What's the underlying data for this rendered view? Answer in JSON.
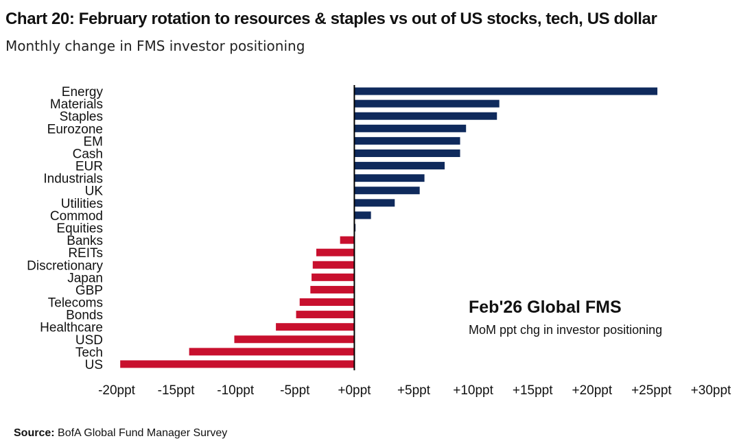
{
  "header": {
    "title": "Chart 20: February rotation to resources & staples vs out of US stocks, tech, US dollar",
    "subtitle": "Monthly change in FMS investor positioning"
  },
  "footer": {
    "source_label": "Source:",
    "source_text": "BofA Global Fund Manager Survey"
  },
  "chart_data": {
    "type": "bar",
    "orientation": "horizontal",
    "categories": [
      "Energy",
      "Materials",
      "Staples",
      "Eurozone",
      "EM",
      "Cash",
      "EUR",
      "Industrials",
      "UK",
      "Utilities",
      "Commod",
      "Equities",
      "Banks",
      "REITs",
      "Discretionary",
      "Japan",
      "GBP",
      "Telecoms",
      "Bonds",
      "Healthcare",
      "USD",
      "Tech",
      "US"
    ],
    "values": [
      25.5,
      12.2,
      12.0,
      9.4,
      8.9,
      8.9,
      7.6,
      5.9,
      5.5,
      3.4,
      1.4,
      0.1,
      -1.2,
      -3.2,
      -3.5,
      -3.6,
      -3.7,
      -4.6,
      -4.9,
      -6.6,
      -10.1,
      -13.9,
      -19.7
    ],
    "xlim": [
      -20,
      30
    ],
    "x_ticks": [
      -20,
      -15,
      -10,
      -5,
      0,
      5,
      10,
      15,
      20,
      25,
      30
    ],
    "x_tick_labels": [
      "-20ppt",
      "-15ppt",
      "-10ppt",
      "-5ppt",
      "+0ppt",
      "+5ppt",
      "+10ppt",
      "+15ppt",
      "+20ppt",
      "+25ppt",
      "+30ppt"
    ],
    "grid": false,
    "colors": {
      "positive": "#0f2a5c",
      "negative": "#c8102e",
      "axis": "#000000"
    },
    "annotation": {
      "title": "Feb'26 Global FMS",
      "subtitle": "MoM ppt chg in investor positioning"
    }
  }
}
